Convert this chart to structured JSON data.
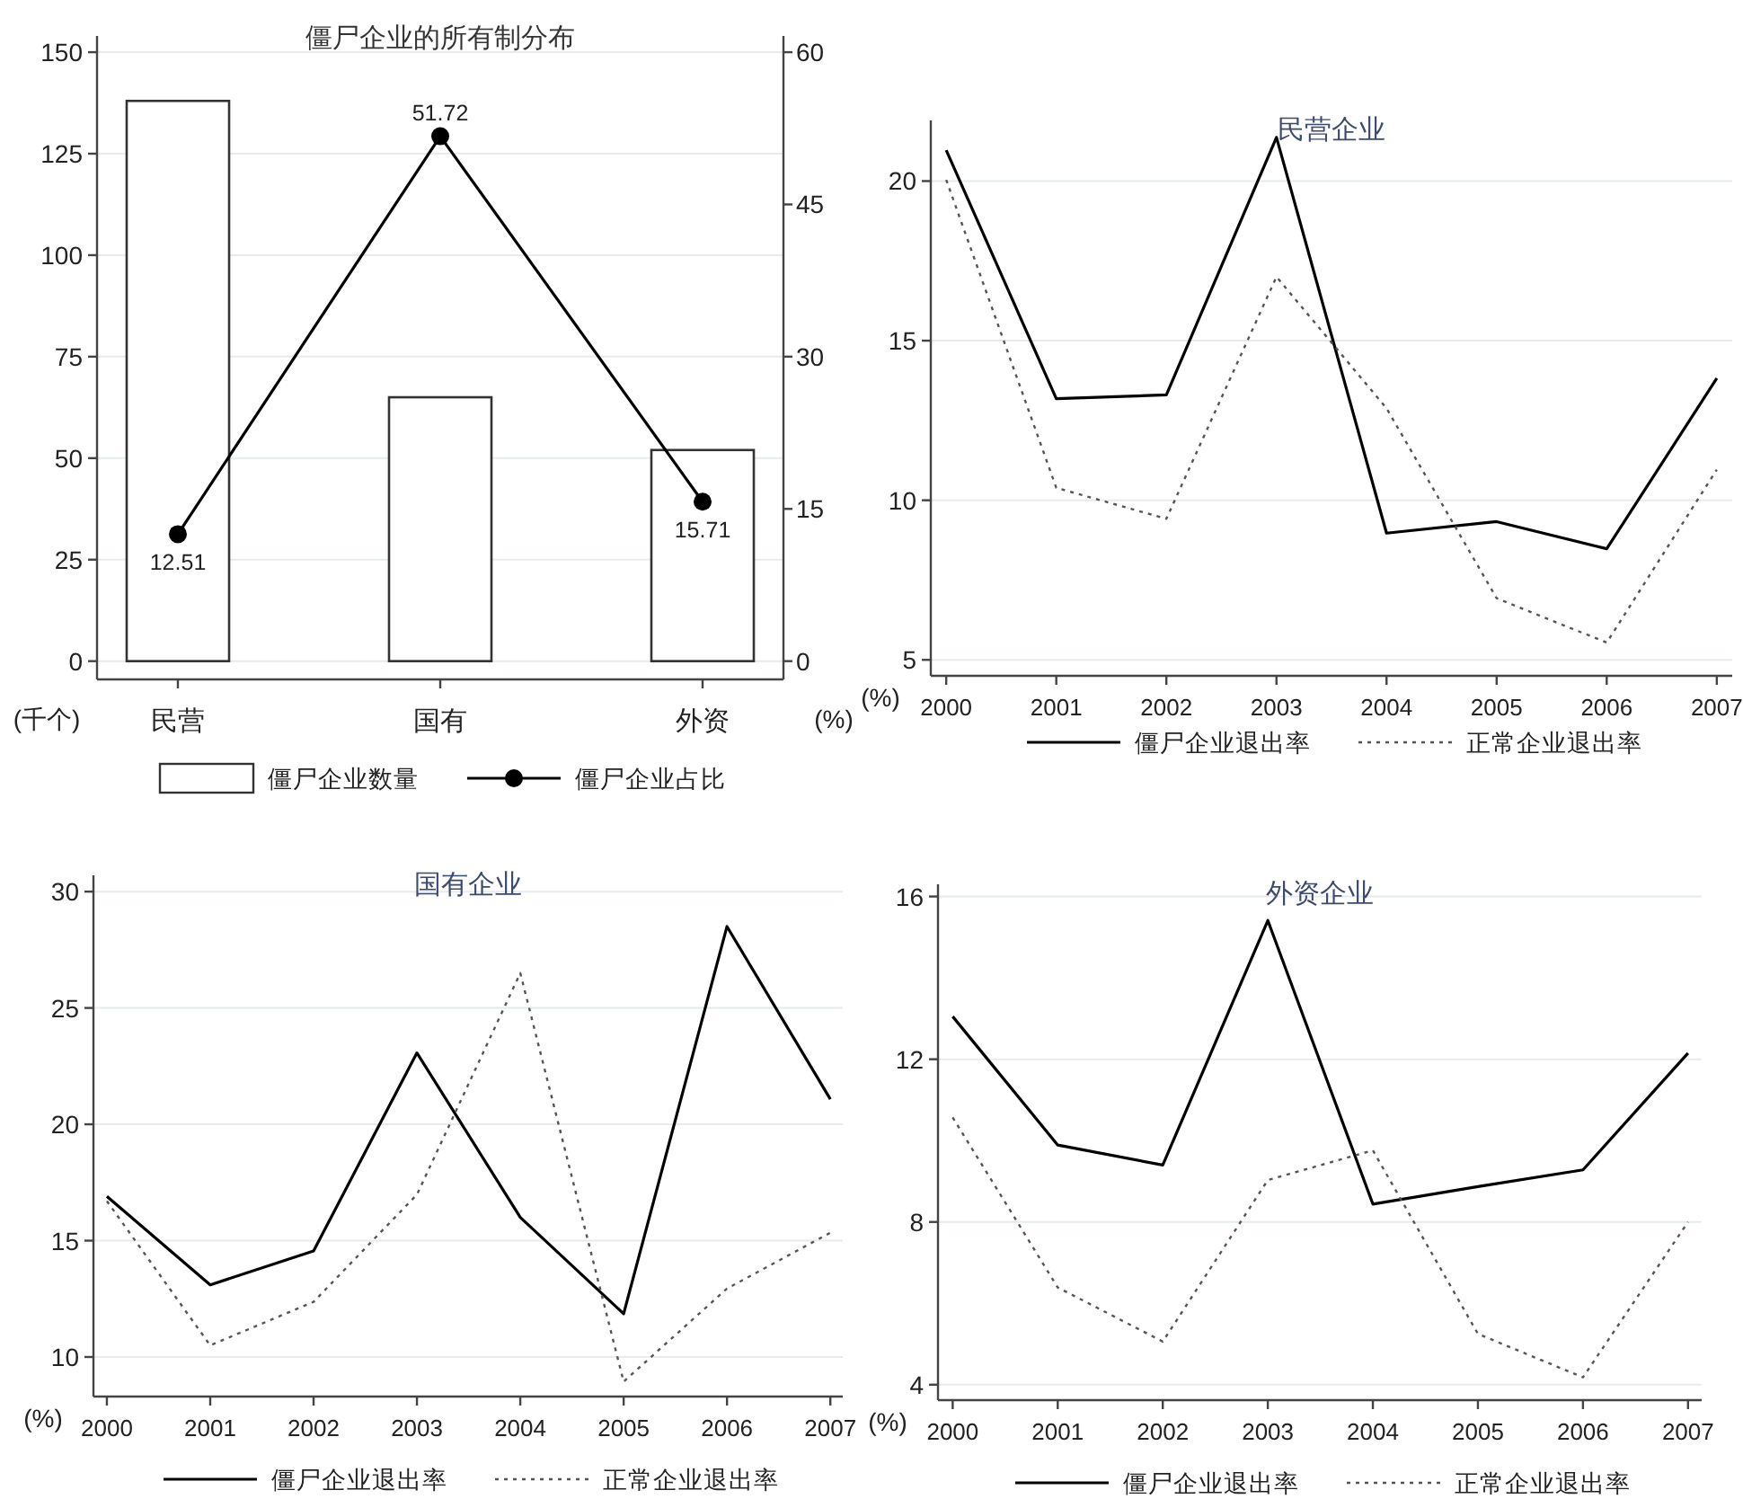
{
  "chart_data": [
    {
      "type": "bar",
      "title": "僵尸企业的所有制分布",
      "categories": [
        "民营",
        "国有",
        "外资"
      ],
      "ylabel": "(千个)",
      "y2label": "(%)",
      "ylim": [
        -4.5,
        154
      ],
      "yticks": [
        0,
        25,
        50,
        75,
        100,
        125,
        150
      ],
      "y2lim": [
        -1.8,
        61.6
      ],
      "y2ticks": [
        0,
        15,
        30,
        45,
        60
      ],
      "grid": "y",
      "legend": "bottom",
      "series": [
        {
          "name": "僵尸企业数量",
          "type": "bar",
          "color": "#ffffff",
          "values": [
            138,
            65,
            52
          ]
        },
        {
          "name": "僵尸企业占比",
          "type": "line",
          "axis": "y2",
          "color": "#000000",
          "marker": "circle",
          "line_style": "solid",
          "values": [
            12.51,
            51.72,
            15.71
          ],
          "value_labels": [
            "12.51",
            "51.72",
            "15.71"
          ]
        }
      ]
    },
    {
      "type": "line",
      "title": "民营企业",
      "x": [
        2000,
        2001,
        2002,
        2003,
        2004,
        2005,
        2006,
        2007
      ],
      "xlim": [
        1999.86,
        2007.14
      ],
      "xticks": [
        2000,
        2001,
        2002,
        2003,
        2004,
        2005,
        2006,
        2007
      ],
      "ylim": [
        4.5,
        21.9
      ],
      "yticks": [
        5,
        10,
        15,
        20
      ],
      "ylabel": "(%)",
      "grid": "y",
      "legend": "bottom",
      "series": [
        {
          "name": "僵尸企业退出率",
          "color": "#000000",
          "line_style": "solid",
          "values": [
            20.97,
            13.18,
            13.3,
            21.37,
            8.97,
            9.33,
            8.48,
            13.82
          ]
        },
        {
          "name": "正常企业退出率",
          "color": "#555555",
          "line_style": "dotted",
          "values": [
            20.04,
            10.39,
            9.42,
            17.0,
            12.88,
            6.93,
            5.54,
            10.96
          ]
        }
      ]
    },
    {
      "type": "line",
      "title": "国有企业",
      "x": [
        2000,
        2001,
        2002,
        2003,
        2004,
        2005,
        2006,
        2007
      ],
      "xlim": [
        1999.87,
        2007.12
      ],
      "xticks": [
        2000,
        2001,
        2002,
        2003,
        2004,
        2005,
        2006,
        2007
      ],
      "ylim": [
        8.3,
        30.7
      ],
      "yticks": [
        10,
        15,
        20,
        25,
        30
      ],
      "ylabel": "(%)",
      "grid": "y",
      "legend": "bottom",
      "series": [
        {
          "name": "僵尸企业退出率",
          "color": "#000000",
          "line_style": "solid",
          "values": [
            16.9,
            13.1,
            14.56,
            23.07,
            16.0,
            11.86,
            28.5,
            21.08
          ]
        },
        {
          "name": "正常企业退出率",
          "color": "#555555",
          "line_style": "dotted",
          "values": [
            16.7,
            10.5,
            12.37,
            16.98,
            26.5,
            8.94,
            12.94,
            15.34
          ]
        }
      ]
    },
    {
      "type": "line",
      "title": "外资企业",
      "x": [
        2000,
        2001,
        2002,
        2003,
        2004,
        2005,
        2006,
        2007
      ],
      "xlim": [
        1999.86,
        2007.13
      ],
      "xticks": [
        2000,
        2001,
        2002,
        2003,
        2004,
        2005,
        2006,
        2007
      ],
      "ylim": [
        3.62,
        16.3
      ],
      "yticks": [
        4,
        8,
        12,
        16
      ],
      "ylabel": "(%)",
      "grid": "y",
      "legend": "bottom",
      "series": [
        {
          "name": "僵尸企业退出率",
          "color": "#000000",
          "line_style": "solid",
          "values": [
            13.05,
            9.89,
            9.4,
            15.41,
            8.44,
            8.87,
            9.28,
            12.15
          ]
        },
        {
          "name": "正常企业退出率",
          "color": "#555555",
          "line_style": "dotted",
          "values": [
            10.57,
            6.39,
            5.06,
            9.03,
            9.76,
            5.25,
            4.18,
            8.0
          ]
        }
      ]
    }
  ]
}
